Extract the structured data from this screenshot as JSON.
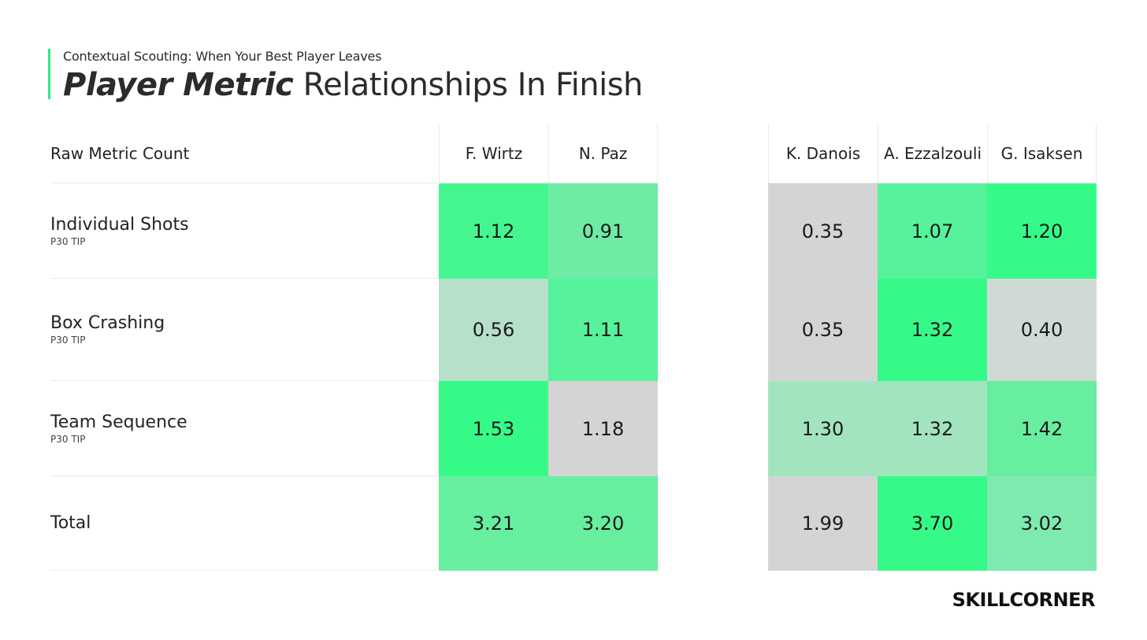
{
  "header": {
    "subtitle": "Contextual Scouting: When Your Best Player Leaves",
    "title_bold": "Player Metric",
    "title_rest": "Relationships In Finish"
  },
  "table": {
    "corner_label": "Raw Metric Count",
    "rows": [
      {
        "label": "Individual Shots",
        "sublabel": "P30 TIP"
      },
      {
        "label": "Box Crashing",
        "sublabel": "P30 TIP"
      },
      {
        "label": "Team Sequence",
        "sublabel": "P30 TIP"
      },
      {
        "label": "Total",
        "sublabel": ""
      }
    ],
    "groups": [
      {
        "players": [
          "F. Wirtz",
          "N. Paz"
        ],
        "values": [
          [
            "1.12",
            "0.91"
          ],
          [
            "0.56",
            "1.11"
          ],
          [
            "1.53",
            "1.18"
          ],
          [
            "3.21",
            "3.20"
          ]
        ],
        "colors": [
          [
            "#45f68f",
            "#6eeca6"
          ],
          [
            "#b7e0cb",
            "#56f39c"
          ],
          [
            "#36fa88",
            "#d4d4d4"
          ],
          [
            "#68ee9f",
            "#68ee9f"
          ]
        ]
      },
      {
        "players": [
          "K. Danois",
          "A. Ezzalzouli",
          "G. Isaksen"
        ],
        "values": [
          [
            "0.35",
            "1.07",
            "1.20"
          ],
          [
            "0.35",
            "1.32",
            "0.40"
          ],
          [
            "1.30",
            "1.32",
            "1.42"
          ],
          [
            "1.99",
            "3.70",
            "3.02"
          ]
        ],
        "colors": [
          [
            "#d4d4d4",
            "#56f39c",
            "#36fa88"
          ],
          [
            "#d4d4d4",
            "#36fa88",
            "#d0dad5"
          ],
          [
            "#a2e4be",
            "#a2e4be",
            "#68ee9f"
          ],
          [
            "#d4d4d4",
            "#36fa88",
            "#7eeab0"
          ]
        ]
      }
    ]
  },
  "brand": "SKILLCORNER"
}
